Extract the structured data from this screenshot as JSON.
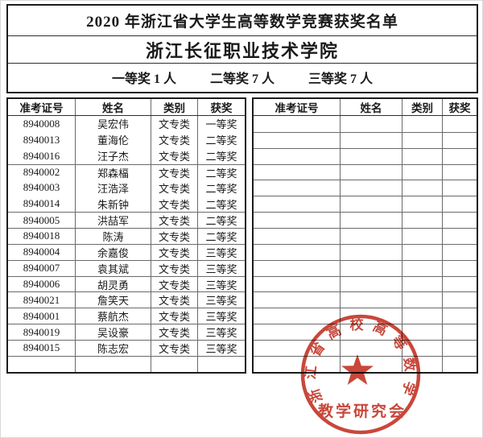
{
  "header": {
    "title": "2020 年浙江省大学生高等数学竞赛获奖名单",
    "school": "浙江长征职业技术学院",
    "summary": [
      "一等奖 1 人",
      "二等奖 7 人",
      "三等奖 7 人"
    ]
  },
  "table": {
    "columns": [
      "准考证号",
      "姓名",
      "类别",
      "获奖"
    ]
  },
  "left_table": {
    "rows": [
      [
        "8940008",
        "吴宏伟",
        "文专类",
        "一等奖"
      ],
      [
        "8940013",
        "董海伦",
        "文专类",
        "二等奖"
      ],
      [
        "8940016",
        "汪子杰",
        "文专类",
        "二等奖"
      ],
      [
        "8940002",
        "郑森楅",
        "文专类",
        "二等奖"
      ],
      [
        "8940003",
        "汪浩泽",
        "文专类",
        "二等奖"
      ],
      [
        "8940014",
        "朱新钟",
        "文专类",
        "二等奖"
      ],
      [
        "8940005",
        "洪喆军",
        "文专类",
        "二等奖"
      ],
      [
        "8940018",
        "陈涛",
        "文专类",
        "二等奖"
      ],
      [
        "8940004",
        "余嘉俊",
        "文专类",
        "三等奖"
      ],
      [
        "8940007",
        "袁其斌",
        "文专类",
        "三等奖"
      ],
      [
        "8940006",
        "胡灵勇",
        "文专类",
        "三等奖"
      ],
      [
        "8940021",
        "詹笑天",
        "文专类",
        "三等奖"
      ],
      [
        "8940001",
        "蔡航杰",
        "文专类",
        "三等奖"
      ],
      [
        "8940019",
        "吴设豪",
        "文专类",
        "三等奖"
      ],
      [
        "8940015",
        "陈志宏",
        "文专类",
        "三等奖"
      ],
      [
        "",
        "",
        "",
        ""
      ]
    ]
  },
  "right_table": {
    "rows": [
      [
        "",
        "",
        "",
        ""
      ],
      [
        "",
        "",
        "",
        ""
      ],
      [
        "",
        "",
        "",
        ""
      ],
      [
        "",
        "",
        "",
        ""
      ],
      [
        "",
        "",
        "",
        ""
      ],
      [
        "",
        "",
        "",
        ""
      ],
      [
        "",
        "",
        "",
        ""
      ],
      [
        "",
        "",
        "",
        ""
      ],
      [
        "",
        "",
        "",
        ""
      ],
      [
        "",
        "",
        "",
        ""
      ],
      [
        "",
        "",
        "",
        ""
      ],
      [
        "",
        "",
        "",
        ""
      ],
      [
        "",
        "",
        "",
        ""
      ],
      [
        "",
        "",
        "",
        ""
      ],
      [
        "",
        "",
        "",
        ""
      ],
      [
        "",
        "",
        "",
        ""
      ]
    ]
  },
  "stamp": {
    "arc_text": "浙江省高校高等数学",
    "bottom_text": "教学研究会",
    "color": "#c43a2c",
    "star_icon": "red-star"
  }
}
